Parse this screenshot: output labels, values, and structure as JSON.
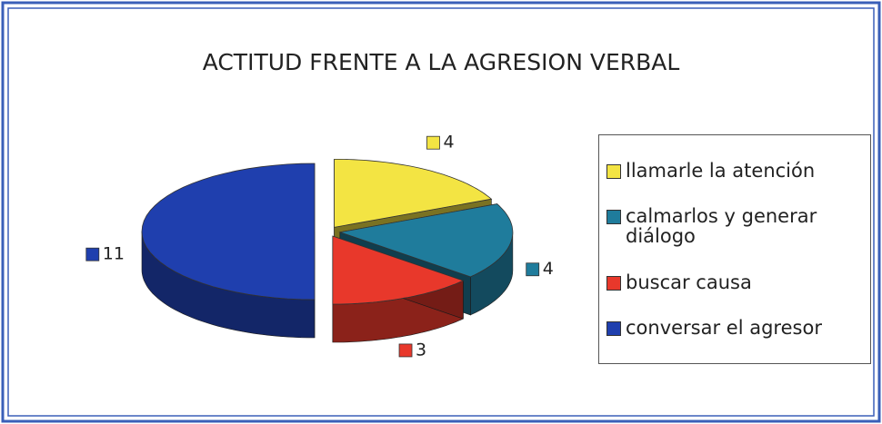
{
  "chart_data": {
    "type": "pie",
    "title": "ACTITUD FRENTE A LA AGRESION VERBAL",
    "categories": [
      "llamarle la atención",
      "calmarlos y generar diálogo",
      "buscar causa",
      "conversar el agresor"
    ],
    "values": [
      4,
      4,
      3,
      11
    ],
    "colors": [
      "#f3e443",
      "#1f7c9c",
      "#e8382b",
      "#1f3fae"
    ],
    "legend": "right"
  }
}
